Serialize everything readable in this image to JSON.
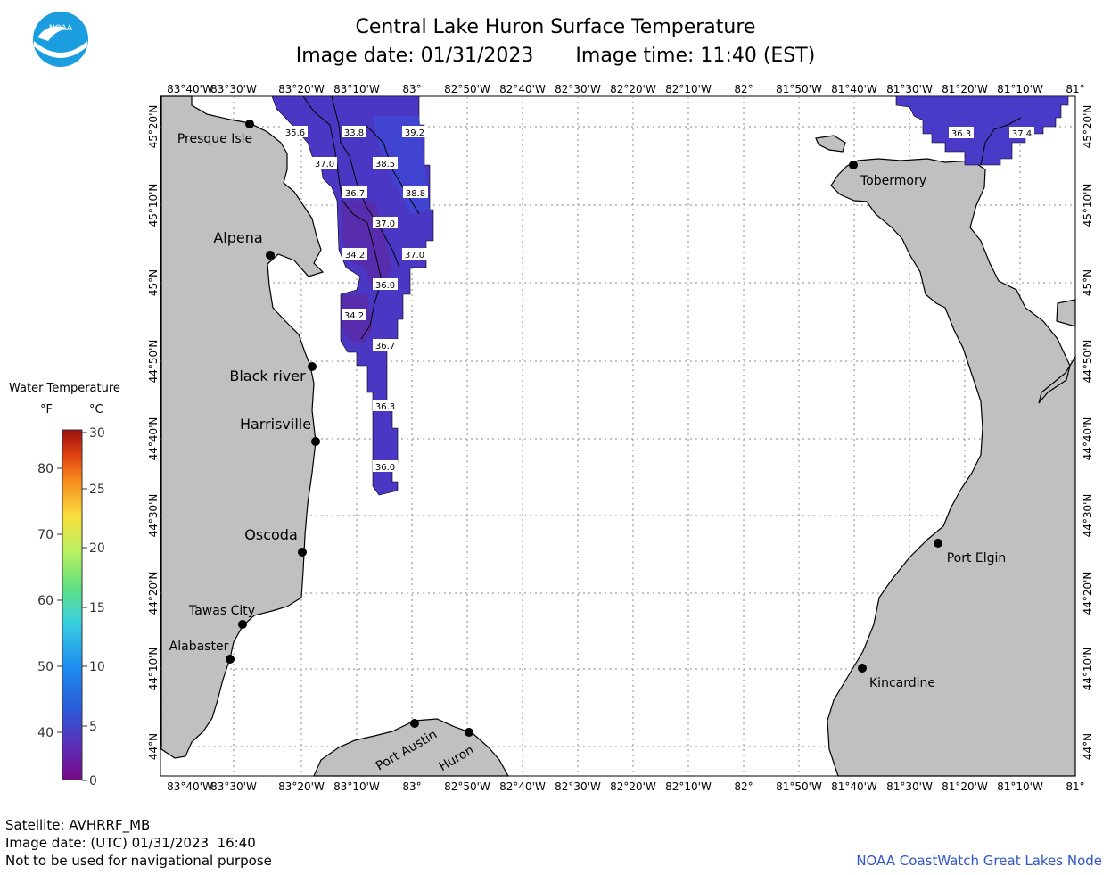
{
  "title": "Central Lake Huron Surface Temperature",
  "image_date_label": "Image date: 01/31/2023",
  "image_time_label": "Image time: 11:40 (EST)",
  "logo_text": "NOAA",
  "legend": {
    "title": "Water Temperature",
    "unit_f": "°F",
    "unit_c": "°C",
    "f_ticks": [
      "80",
      "70",
      "60",
      "50",
      "40"
    ],
    "c_ticks": [
      "30",
      "25",
      "20",
      "15",
      "10",
      "5",
      "0"
    ]
  },
  "lon_labels": [
    "83°40'W",
    "83°30'W",
    "83°20'W",
    "83°10'W",
    "83°",
    "82°50'W",
    "82°40'W",
    "82°30'W",
    "82°20'W",
    "82°10'W",
    "82°",
    "81°50'W",
    "81°40'W",
    "81°30'W",
    "81°20'W",
    "81°10'W",
    "81°"
  ],
  "lat_labels": [
    "45°20'N",
    "45°10'N",
    "45°N",
    "44°50'N",
    "44°40'N",
    "44°30'N",
    "44°20'N",
    "44°10'N",
    "44°N"
  ],
  "places": [
    "Presque Isle",
    "Alpena",
    "Black river",
    "Harrisville",
    "Oscoda",
    "Tawas City",
    "Alabaster",
    "Port Austin",
    "Huron",
    "Tobermory",
    "Port Elgin",
    "Kincardine"
  ],
  "temp_labels": [
    "35.6",
    "33.8",
    "39.2",
    "37.0",
    "38.5",
    "36.7",
    "38.8",
    "37.0",
    "34.2",
    "37.0",
    "36.0",
    "34.2",
    "36.7",
    "36.3",
    "36.0",
    "36.3",
    "37.4"
  ],
  "footer": {
    "satellite": "Satellite: AVHRRF_MB",
    "utc_date": "Image date: (UTC) 01/31/2023  16:40",
    "disclaimer": "Not to be used for navigational purpose",
    "credit": "NOAA CoastWatch Great Lakes Node"
  },
  "colors": {
    "land": "#c0c0c0",
    "water_cold": "#5a2fb8",
    "water_mid": "#4a3ac8",
    "water_blue": "#3f48d6",
    "grid": "#888888"
  }
}
